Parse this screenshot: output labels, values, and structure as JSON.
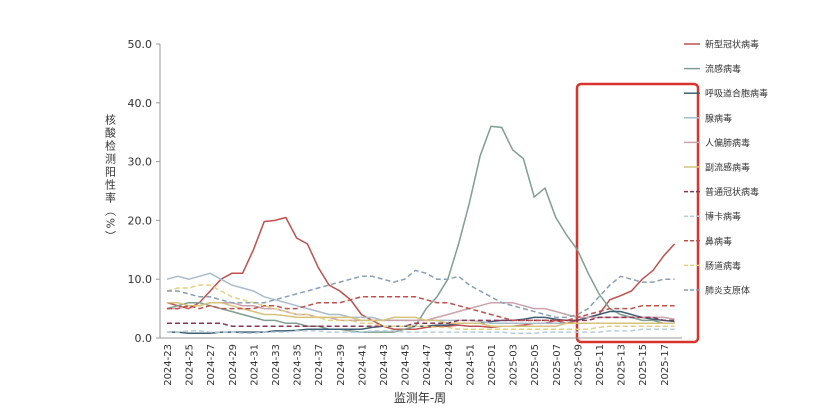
{
  "chart_data": {
    "type": "line",
    "x_label": "监测年-周",
    "y_label": "核酸检测阳性率（%）",
    "categories": [
      "2024-23",
      null,
      "2024-25",
      null,
      "2024-27",
      null,
      "2024-29",
      null,
      "2024-31",
      null,
      "2024-33",
      null,
      "2024-35",
      null,
      "2024-37",
      null,
      "2024-39",
      null,
      "2024-41",
      null,
      "2024-43",
      null,
      "2024-45",
      null,
      "2024-47",
      null,
      "2024-49",
      null,
      "2024-51",
      null,
      "2025-01",
      null,
      "2025-03",
      null,
      "2025-05",
      null,
      "2025-07",
      null,
      "2025-09",
      null,
      "2025-11",
      null,
      "2025-13",
      null,
      "2025-15",
      null,
      "2025-17",
      null
    ],
    "ylim": [
      0,
      50
    ],
    "yticks": [
      {
        "value": 0,
        "label": "0.0"
      },
      {
        "value": 10,
        "label": "10.0"
      },
      {
        "value": 20,
        "label": "20.0"
      },
      {
        "value": 30,
        "label": "30.0"
      },
      {
        "value": 40,
        "label": "40.0"
      },
      {
        "value": 50,
        "label": "50.0"
      }
    ],
    "series": [
      {
        "name": "新型冠状病毒",
        "color": "#c0504d",
        "dash": false,
        "values": [
          6,
          5.5,
          5,
          6,
          8,
          10,
          11,
          11,
          15,
          19.8,
          20,
          20.5,
          17,
          16,
          12,
          9,
          8,
          6.5,
          4,
          3,
          2,
          1.5,
          1.5,
          1.5,
          1.8,
          2,
          2,
          2.2,
          2,
          2,
          1.8,
          2,
          2,
          2.2,
          2.5,
          2.5,
          3,
          2.5,
          3,
          3.5,
          4,
          6.5,
          7.2,
          8,
          10,
          11.5,
          14,
          16
        ]
      },
      {
        "name": "流感病毒",
        "color": "#7f9f8f",
        "dash": false,
        "values": [
          5,
          5.5,
          6,
          6,
          5.5,
          5,
          4.5,
          4,
          3.5,
          3,
          3,
          2.5,
          2.5,
          2,
          2,
          1.5,
          1.5,
          1.2,
          1,
          1,
          1,
          1,
          1.5,
          2,
          5,
          7,
          10,
          16,
          23,
          31,
          36,
          35.8,
          32,
          30.5,
          24,
          25.5,
          20.5,
          17.5,
          15,
          11,
          7.5,
          5,
          4,
          3.5,
          3,
          3,
          2.5,
          2.5
        ]
      },
      {
        "name": "呼吸道合胞病毒",
        "color": "#3f5f75",
        "dash": false,
        "values": [
          1,
          1,
          0.8,
          0.8,
          0.8,
          1,
          1,
          1,
          1,
          1,
          1.2,
          1.2,
          1.3,
          1.5,
          1.5,
          1.5,
          1.5,
          1.5,
          1.5,
          1.8,
          2,
          2,
          2,
          2,
          2,
          2.2,
          2.2,
          2.5,
          2.5,
          2.5,
          2.8,
          3,
          3,
          3.2,
          3.5,
          3.5,
          3.2,
          3,
          3,
          3.5,
          4,
          4.5,
          4.5,
          4,
          3.5,
          3.2,
          3,
          2.8
        ]
      },
      {
        "name": "腺病毒",
        "color": "#a9bccb",
        "dash": false,
        "values": [
          10,
          10.5,
          10,
          10.5,
          11,
          10,
          9,
          8.5,
          8,
          7,
          6.5,
          6,
          5.5,
          5,
          4.5,
          4,
          4,
          3.5,
          3.5,
          3.5,
          3,
          3,
          3,
          3,
          3,
          3,
          3,
          3,
          3,
          2.8,
          2.5,
          2.5,
          2.5,
          2.5,
          2.5,
          2.5,
          2.5,
          2.5,
          2.5,
          2.5,
          2.5,
          2.5,
          2.5,
          2.5,
          2.5,
          2.5,
          2.5,
          2.5
        ]
      },
      {
        "name": "人偏肺病毒",
        "color": "#c9a2ad",
        "dash": false,
        "values": [
          5,
          5,
          5.5,
          5.5,
          6,
          6,
          6,
          5.5,
          5.5,
          5,
          5,
          4.5,
          4,
          4,
          3.5,
          3.5,
          3,
          3,
          3,
          3,
          3,
          3,
          3,
          3,
          3,
          3.5,
          4,
          4.5,
          5,
          5.5,
          6,
          6,
          6,
          5.5,
          5,
          5,
          4.5,
          4,
          3.5,
          3.5,
          3.5,
          3.5,
          3.5,
          3.5,
          3.5,
          3.5,
          3.5,
          3.2
        ]
      },
      {
        "name": "副流感病毒",
        "color": "#d6c37a",
        "dash": false,
        "values": [
          6,
          6,
          5.5,
          5.5,
          6,
          6,
          5.5,
          5,
          4.5,
          4,
          4,
          3.8,
          3.5,
          3.5,
          3.5,
          3.5,
          3.5,
          3.5,
          3,
          3,
          3,
          3.5,
          3.5,
          3.5,
          3,
          3,
          2.5,
          2.5,
          2.5,
          2.5,
          2,
          2,
          2,
          2,
          2,
          2,
          2,
          2.5,
          2.5,
          2.5,
          2.5,
          2.5,
          2.5,
          2.5,
          2.5,
          2.5,
          2.5,
          2.5
        ]
      },
      {
        "name": "普通冠状病毒",
        "color": "#8e3550",
        "dash": true,
        "values": [
          2.5,
          2.5,
          2.5,
          2.5,
          2.5,
          2.5,
          2,
          2,
          2,
          2,
          2,
          2,
          2,
          2,
          2,
          2,
          2,
          2,
          2,
          2,
          2,
          2,
          2,
          2.5,
          2.5,
          2.5,
          2.5,
          3,
          3,
          3,
          3,
          3,
          3,
          3,
          3,
          3,
          3,
          3,
          3,
          3,
          3.5,
          3.5,
          3.5,
          3.5,
          3.5,
          3.5,
          3,
          3
        ]
      },
      {
        "name": "博卡病毒",
        "color": "#b9cde0",
        "dash": true,
        "values": [
          1,
          1,
          1.2,
          1.2,
          1,
          1,
          1,
          0.8,
          0.8,
          1,
          1,
          1,
          1.2,
          1.2,
          1.2,
          1,
          1,
          1,
          1,
          1.2,
          1.2,
          1.2,
          1,
          1,
          1,
          1,
          1,
          1,
          1,
          1,
          1,
          1,
          0.8,
          0.8,
          0.8,
          1,
          1,
          1,
          1,
          1,
          1,
          1.2,
          1.2,
          1.2,
          1.5,
          1.5,
          1.5,
          1.5
        ]
      },
      {
        "name": "鼻病毒",
        "color": "#c0504d",
        "dash": true,
        "values": [
          5,
          5,
          5.5,
          5,
          5.5,
          5,
          5,
          5,
          5,
          5.5,
          5.5,
          5,
          5,
          5.5,
          6,
          6,
          6,
          6.5,
          7,
          7,
          7,
          7,
          7,
          7,
          6.5,
          6,
          6,
          5.5,
          5,
          4.5,
          4,
          3.5,
          3,
          3,
          3,
          3,
          3,
          3,
          3.5,
          4,
          4.5,
          5,
          5,
          5,
          5.5,
          5.5,
          5.5,
          5.5
        ]
      },
      {
        "name": "肠道病毒",
        "color": "#e2d27f",
        "dash": true,
        "values": [
          8,
          8.5,
          8.5,
          9,
          9,
          8,
          7,
          6.5,
          6,
          5.5,
          5,
          4.5,
          4,
          4,
          3.5,
          3,
          3,
          3,
          2.5,
          2.5,
          2,
          2,
          2,
          2,
          2,
          1.8,
          1.8,
          1.5,
          1.5,
          1.5,
          1.5,
          1.5,
          1.5,
          1.5,
          1.5,
          1.5,
          1.5,
          1.5,
          1.5,
          1.5,
          1.8,
          2,
          2,
          2,
          2,
          2,
          2,
          2
        ]
      },
      {
        "name": "肺炎支原体",
        "color": "#8aa0b2",
        "dash": true,
        "values": [
          8,
          8,
          7.5,
          7,
          7,
          6.5,
          6,
          6,
          6,
          6,
          6.5,
          7,
          7.5,
          8,
          8.5,
          9,
          9.5,
          10,
          10.5,
          10.5,
          10,
          9.5,
          10,
          11.5,
          11,
          10,
          10,
          10.5,
          9,
          8,
          7,
          6,
          5.5,
          5,
          4.5,
          4,
          3.5,
          3.5,
          4,
          5,
          7,
          9,
          10.5,
          10,
          9.5,
          9.5,
          10,
          10
        ]
      }
    ]
  }
}
